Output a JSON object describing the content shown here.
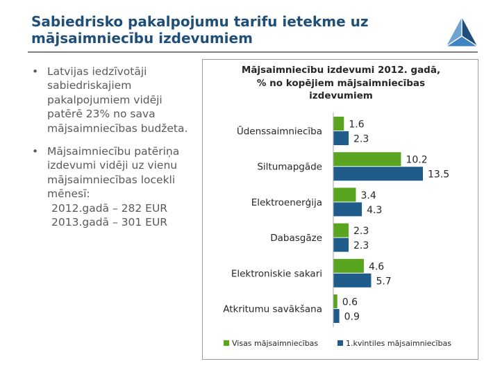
{
  "header": {
    "title_line1": "Sabiedrisko pakalpojumu tarifu ietekme uz",
    "title_line2": "mājsaimniecību izdevumiem"
  },
  "bullets": {
    "item1": "Latvijas iedzīvotāji sabiedriskajiem pakalpojumiem vidēji patērē 23% no sava mājsaimniecības budžeta.",
    "item2": "Mājsaimniecību patēriņa izdevumi vidēji uz vienu mājsaimniecības locekli mēnesī:",
    "line_2012": "2012.gadā – 282 EUR",
    "line_2013": "2013.gadā – 301 EUR"
  },
  "colors": {
    "title": "#1f4e79",
    "series1": "#5aa51f",
    "series2": "#1f5c8c"
  },
  "chart_data": {
    "type": "bar",
    "orientation": "horizontal",
    "title_line1": "Mājsaimniecību izdevumi 2012. gadā,",
    "title_line2": "% no kopējiem mājsaimniecības",
    "title_line3": "izdevumiem",
    "categories": [
      "Ūdenssaimniecība",
      "Siltumapgāde",
      "Elektroenerģija",
      "Dabasgāze",
      "Elektroniskie sakari",
      "Atkritumu savākšana"
    ],
    "series": [
      {
        "name": "Visas mājsaimniecības",
        "values": [
          1.6,
          10.2,
          3.4,
          2.3,
          4.6,
          0.6
        ]
      },
      {
        "name": "1.kvintiles mājsaimniecības",
        "values": [
          2.3,
          13.5,
          4.3,
          2.3,
          5.7,
          0.9
        ]
      }
    ],
    "xlim": [
      0,
      13.5
    ],
    "legend_position": "bottom",
    "gridlines": false
  }
}
